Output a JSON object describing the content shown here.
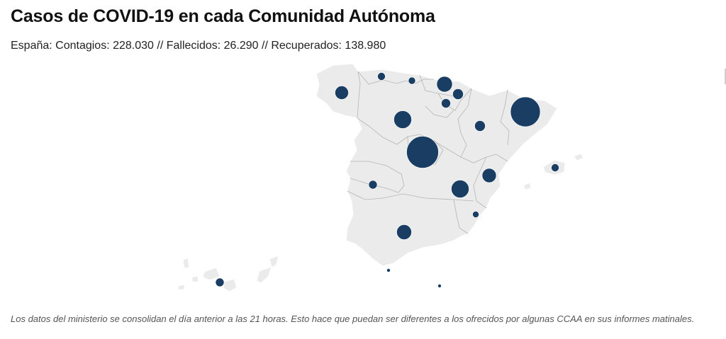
{
  "header": {
    "title": "Casos de COVID-19 en cada Comunidad Autónoma",
    "subtitle": "España: Contagios: 228.030 // Fallecidos: 26.290 // Recuperados: 138.980"
  },
  "map": {
    "land_color": "#ebebeb",
    "border_color": "#b5b5b5",
    "bubble_color": "#1a3d63",
    "regions": [
      {
        "id": "galicia"
      },
      {
        "id": "asturias"
      },
      {
        "id": "cantabria"
      },
      {
        "id": "pais-vasco"
      },
      {
        "id": "navarra"
      },
      {
        "id": "la-rioja"
      },
      {
        "id": "aragon"
      },
      {
        "id": "cataluna"
      },
      {
        "id": "castilla-y-leon"
      },
      {
        "id": "madrid"
      },
      {
        "id": "castilla-la-mancha"
      },
      {
        "id": "extremadura"
      },
      {
        "id": "comunidad-valenciana"
      },
      {
        "id": "region-de-murcia"
      },
      {
        "id": "andalucia"
      },
      {
        "id": "baleares"
      },
      {
        "id": "canarias"
      },
      {
        "id": "ceuta"
      },
      {
        "id": "melilla"
      }
    ]
  },
  "footnote": "Los datos del ministerio se consolidan el día anterior a las 21 horas. Esto hace que puedan ser diferentes a los ofrecidos por algunas CCAA en sus informes matinales."
}
